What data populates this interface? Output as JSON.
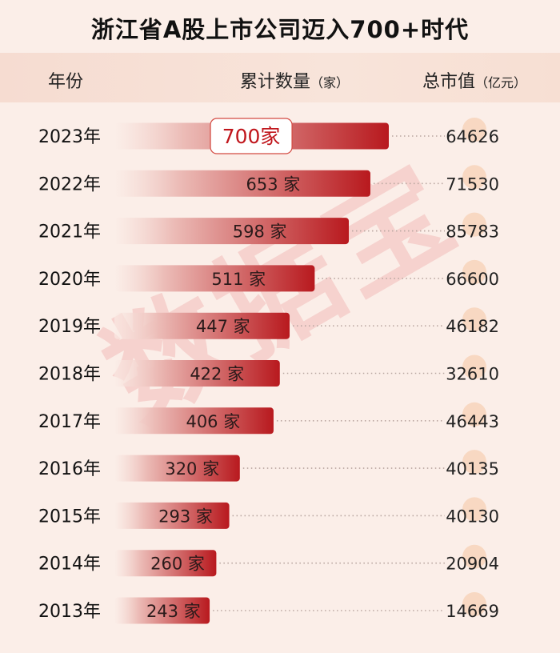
{
  "title": "浙江省A股上市公司迈入700+时代",
  "header": {
    "year": "年份",
    "count": "累计数量",
    "count_unit": "（家）",
    "cap": "总市值",
    "cap_unit": "（亿元）"
  },
  "watermark": "数据宝",
  "colors": {
    "bar_dark": "#b8191e",
    "bar_light": "#fbeee8",
    "accent": "#c0161c",
    "dot": "#f5c7a3"
  },
  "chart_data": {
    "type": "bar",
    "orientation": "horizontal",
    "title": "浙江省A股上市公司迈入700+时代",
    "categories": [
      "2023年",
      "2022年",
      "2021年",
      "2020年",
      "2019年",
      "2018年",
      "2017年",
      "2016年",
      "2015年",
      "2014年",
      "2013年"
    ],
    "series": [
      {
        "name": "累计数量",
        "unit": "家",
        "values": [
          700,
          653,
          598,
          511,
          447,
          422,
          406,
          320,
          293,
          260,
          243
        ]
      },
      {
        "name": "总市值",
        "unit": "亿元",
        "values": [
          64626,
          71530,
          85783,
          66600,
          46182,
          32610,
          46443,
          40135,
          40130,
          20904,
          14669
        ]
      }
    ],
    "count_labels": [
      "700家",
      "653 家",
      "598 家",
      "511 家",
      "447 家",
      "422 家",
      "406 家",
      "320 家",
      "293 家",
      "260 家",
      "243 家"
    ]
  }
}
